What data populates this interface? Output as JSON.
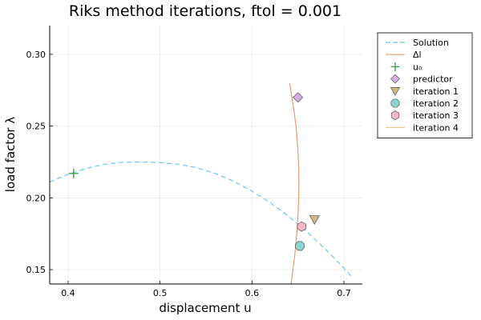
{
  "chart_data": {
    "type": "line",
    "title": "Riks method iterations, ftol = 0.001",
    "xlabel": "displacement u",
    "ylabel": "load factor λ",
    "xlim": [
      0.38,
      0.72
    ],
    "ylim": [
      0.14,
      0.32
    ],
    "xticks": [
      0.4,
      0.5,
      0.6,
      0.7
    ],
    "xtick_labels": [
      "0.4",
      "0.5",
      "0.6",
      "0.7"
    ],
    "yticks": [
      0.15,
      0.2,
      0.25,
      0.3
    ],
    "ytick_labels": [
      "0.15",
      "0.20",
      "0.25",
      "0.30"
    ],
    "grid": true,
    "legend_position": "outer-top-right",
    "series": [
      {
        "name": "Solution",
        "kind": "line",
        "style": "dashed",
        "color": "#6ec5ee",
        "x": [
          0.38,
          0.4,
          0.42,
          0.44,
          0.46,
          0.48,
          0.5,
          0.52,
          0.54,
          0.56,
          0.58,
          0.6,
          0.62,
          0.64,
          0.66,
          0.68,
          0.7,
          0.71
        ],
        "y": [
          0.211,
          0.2165,
          0.2206,
          0.2234,
          0.2248,
          0.225,
          0.2246,
          0.2234,
          0.221,
          0.217,
          0.2116,
          0.2048,
          0.1966,
          0.187,
          0.1762,
          0.1642,
          0.151,
          0.144
        ]
      },
      {
        "name": "Δl",
        "kind": "line",
        "style": "solid",
        "color": "#e89b7b",
        "x": [
          0.6425,
          0.6445,
          0.6465,
          0.648,
          0.6493,
          0.6502,
          0.6508,
          0.651,
          0.6508,
          0.6502,
          0.6492,
          0.6478,
          0.6458,
          0.6435,
          0.641
        ],
        "y": [
          0.14,
          0.15,
          0.16,
          0.17,
          0.18,
          0.19,
          0.2,
          0.21,
          0.22,
          0.23,
          0.24,
          0.25,
          0.26,
          0.27,
          0.28
        ]
      },
      {
        "name": "u₀",
        "kind": "marker",
        "marker": "plus",
        "color": "#3da24a",
        "x": [
          0.406
        ],
        "y": [
          0.217
        ]
      },
      {
        "name": "predictor",
        "kind": "marker",
        "marker": "diamond",
        "color": "#d3a9e6",
        "x": [
          0.65
        ],
        "y": [
          0.27
        ]
      },
      {
        "name": "iteration 1",
        "kind": "marker",
        "marker": "triangle-down",
        "color": "#cdb47e",
        "x": [
          0.668
        ],
        "y": [
          0.185
        ]
      },
      {
        "name": "iteration 2",
        "kind": "marker",
        "marker": "octagon",
        "color": "#86d4cf",
        "x": [
          0.652
        ],
        "y": [
          0.1665
        ]
      },
      {
        "name": "iteration 3",
        "kind": "marker",
        "marker": "hexagon",
        "color": "#f5b3c8",
        "x": [
          0.654
        ],
        "y": [
          0.18
        ]
      },
      {
        "name": "iteration 4",
        "kind": "marker",
        "marker": "line",
        "color": "#e6cf9a",
        "x": [],
        "y": []
      }
    ]
  }
}
